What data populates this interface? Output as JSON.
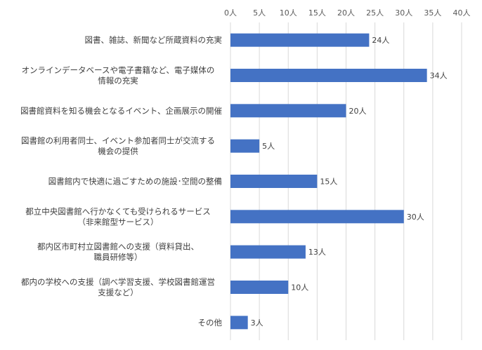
{
  "chart_data": {
    "type": "bar",
    "orientation": "horizontal",
    "title": "",
    "xlabel": "",
    "ylabel": "",
    "unit": "人",
    "xlim": [
      0,
      40
    ],
    "tick_step": 5,
    "grid": true,
    "tick_labels": [
      "0人",
      "5人",
      "10人",
      "15人",
      "20人",
      "25人",
      "30人",
      "35人",
      "40人"
    ],
    "categories": [
      [
        "図書、雑誌、新聞など所蔵資料の充実"
      ],
      [
        "オンラインデータベースや電子書籍など、電子媒体の",
        "情報の充実"
      ],
      [
        "図書館資料を知る機会となるイベント、企画展示の開催"
      ],
      [
        "図書館の利用者同士、イベント参加者同士が交流する",
        "機会の提供"
      ],
      [
        "図書館内で快適に過ごすための施設･空間の整備"
      ],
      [
        "都立中央図書館へ行かなくても受けられるサービス",
        "（非来館型サービス）"
      ],
      [
        "都内区市町村立図書館への支援（資料貸出、",
        "職員研修等）"
      ],
      [
        "都内の学校への支援（調べ学習支援、学校図書館運営",
        "支援など）"
      ],
      [
        "その他"
      ]
    ],
    "values": [
      24,
      34,
      20,
      5,
      15,
      30,
      13,
      10,
      3
    ],
    "data_labels": [
      "24人",
      "34人",
      "20人",
      "5人",
      "15人",
      "30人",
      "13人",
      "10人",
      "3人"
    ],
    "bar_color": "#4472C4",
    "grid_color": "#D9D9D9"
  }
}
